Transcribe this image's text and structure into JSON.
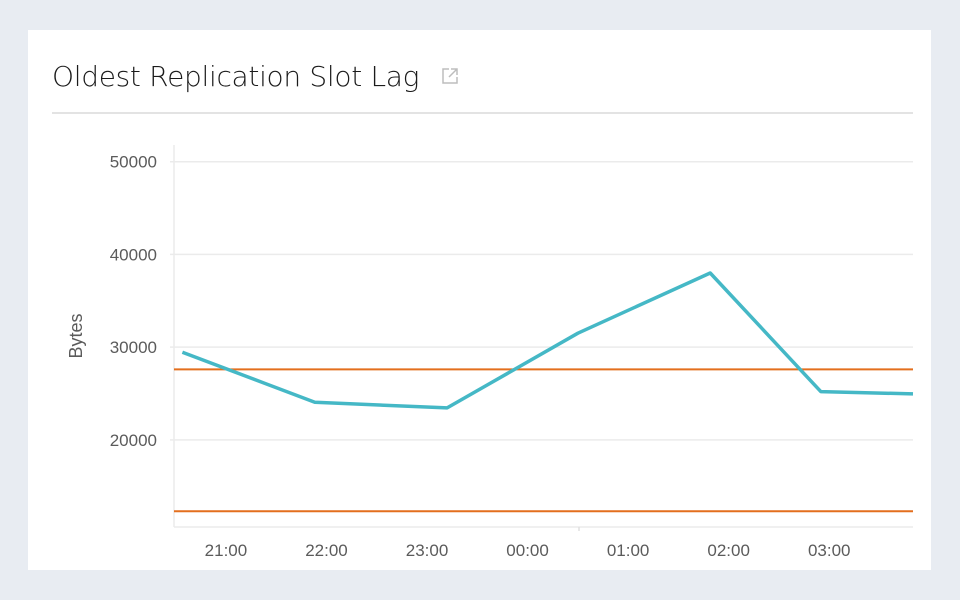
{
  "panel": {
    "title": "Oldest Replication Slot Lag",
    "link_icon": "external-link-icon"
  },
  "chart_data": {
    "type": "line",
    "title": "Oldest Replication Slot Lag",
    "xlabel": "",
    "ylabel": "Bytes",
    "xlim": [
      "20:29",
      "03:50"
    ],
    "ylim": [
      10600,
      51800
    ],
    "grid": true,
    "x_ticks": [
      "21:00",
      "22:00",
      "23:00",
      "00:00",
      "01:00",
      "02:00",
      "03:00"
    ],
    "y_ticks": [
      20000,
      30000,
      40000,
      50000
    ],
    "series": [
      {
        "color": "#45b8c6",
        "x": [
          "20:34",
          "21:53",
          "23:12",
          "00:30",
          "01:49",
          "02:55",
          "03:50"
        ],
        "values": [
          29450,
          24050,
          23450,
          31500,
          38000,
          25200,
          24950
        ]
      }
    ],
    "thresholds": [
      {
        "value": 27600,
        "color": "#e36f1e"
      },
      {
        "value": 12300,
        "color": "#e36f1e"
      }
    ]
  }
}
